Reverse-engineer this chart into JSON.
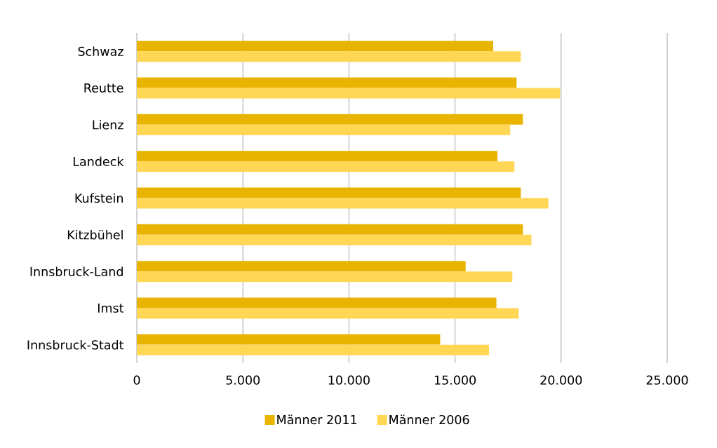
{
  "chart_data": {
    "type": "bar",
    "orientation": "horizontal",
    "categories": [
      "Schwaz",
      "Reutte",
      "Lienz",
      "Landeck",
      "Kufstein",
      "Kitzbühel",
      "Innsbruck-Land",
      "Imst",
      "Innsbruck-Stadt"
    ],
    "series": [
      {
        "name": "Männer 2011",
        "color": "#E8B400",
        "values": [
          16800,
          17900,
          18200,
          17000,
          18100,
          18200,
          15500,
          16950,
          14300
        ]
      },
      {
        "name": "Männer 2006",
        "color": "#FFD754",
        "values": [
          18100,
          19950,
          17600,
          17800,
          19400,
          18600,
          17700,
          18000,
          16600
        ]
      }
    ],
    "xlim": [
      0,
      25000
    ],
    "xticks": [
      0,
      {
        "value": 5000,
        "label": "5.000"
      },
      {
        "value": 10000,
        "label": "10.000"
      },
      {
        "value": 15000,
        "label": "15.000"
      },
      {
        "value": 20000,
        "label": "20.000"
      },
      {
        "value": 25000,
        "label": "25.000"
      }
    ],
    "grid": "x",
    "legend": "bottom"
  }
}
